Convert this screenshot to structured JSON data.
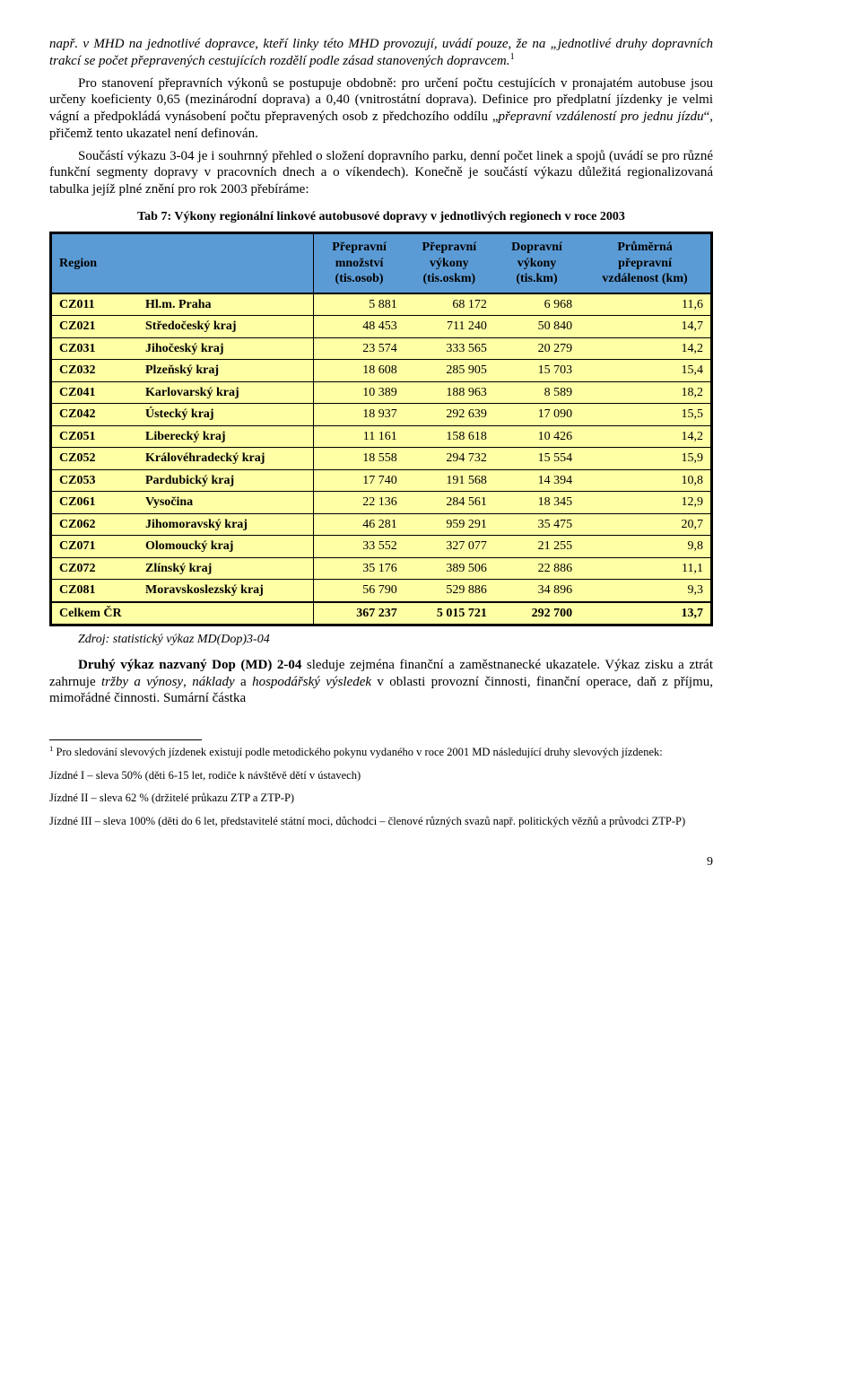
{
  "para1": "např. v MHD na jednotlivé dopravce, kteří linky této MHD provozují, uvádí pouze, že na „jednotlivé druhy dopravních trakcí se počet přepravených cestujících rozdělí podle zásad stanovených dopravcem.",
  "para2a": "Pro stanovení přepravních výkonů se postupuje obdobně: pro určení počtu cestujících v pronajatém autobuse jsou určeny koeficienty 0,65 (mezinárodní doprava) a 0,40 (vnitrostátní doprava). Definice pro předplatní jízdenky je velmi vágní a předpokládá vynásobení počtu přepravených osob z předchozího oddílu „",
  "para2_em": "přepravní vzdáleností pro jednu jízdu",
  "para2b": "“, přičemž tento ukazatel není definován.",
  "para3": "Součástí výkazu 3-04 je i souhrnný přehled o složení dopravního parku, denní počet linek a spojů (uvádí se pro různé funkční segmenty dopravy v pracovních dnech a o víkendech). Konečně je součástí výkazu důležitá regionalizovaná tabulka jejíž plné znění pro rok 2003 přebíráme:",
  "caption": "Tab 7: Výkony regionální linkové autobusové dopravy v jednotlivých regionech v roce 2003",
  "table": {
    "headers": {
      "region": "Region",
      "c1a": "Přepravní",
      "c1b": "množství",
      "c1c": "(tis.osob)",
      "c2a": "Přepravní",
      "c2b": "výkony",
      "c2c": "(tis.oskm)",
      "c3a": "Dopravní",
      "c3b": "výkony",
      "c3c": "(tis.km)",
      "c4a": "Průměrná",
      "c4b": "přepravní",
      "c4c": "vzdálenost (km)"
    },
    "header_bg": "#5b9bd5",
    "body_bg": "#ffffa6",
    "rows": [
      {
        "code": "CZ011",
        "name": "Hl.m. Praha",
        "v": [
          "5 881",
          "68 172",
          "6 968",
          "11,6"
        ]
      },
      {
        "code": "CZ021",
        "name": "Středočeský kraj",
        "v": [
          "48 453",
          "711 240",
          "50 840",
          "14,7"
        ]
      },
      {
        "code": "CZ031",
        "name": "Jihočeský kraj",
        "v": [
          "23 574",
          "333 565",
          "20 279",
          "14,2"
        ]
      },
      {
        "code": "CZ032",
        "name": "Plzeňský kraj",
        "v": [
          "18 608",
          "285 905",
          "15 703",
          "15,4"
        ]
      },
      {
        "code": "CZ041",
        "name": "Karlovarský kraj",
        "v": [
          "10 389",
          "188 963",
          "8 589",
          "18,2"
        ]
      },
      {
        "code": "CZ042",
        "name": "Ústecký kraj",
        "v": [
          "18 937",
          "292 639",
          "17 090",
          "15,5"
        ]
      },
      {
        "code": "CZ051",
        "name": "Liberecký kraj",
        "v": [
          "11 161",
          "158 618",
          "10 426",
          "14,2"
        ]
      },
      {
        "code": "CZ052",
        "name": "Královéhradecký kraj",
        "v": [
          "18 558",
          "294 732",
          "15 554",
          "15,9"
        ]
      },
      {
        "code": "CZ053",
        "name": "Pardubický kraj",
        "v": [
          "17 740",
          "191 568",
          "14 394",
          "10,8"
        ]
      },
      {
        "code": "CZ061",
        "name": "Vysočina",
        "v": [
          "22 136",
          "284 561",
          "18 345",
          "12,9"
        ]
      },
      {
        "code": "CZ062",
        "name": "Jihomoravský kraj",
        "v": [
          "46 281",
          "959 291",
          "35 475",
          "20,7"
        ]
      },
      {
        "code": "CZ071",
        "name": "Olomoucký kraj",
        "v": [
          "33 552",
          "327 077",
          "21 255",
          "9,8"
        ]
      },
      {
        "code": "CZ072",
        "name": "Zlínský kraj",
        "v": [
          "35 176",
          "389 506",
          "22 886",
          "11,1"
        ]
      },
      {
        "code": "CZ081",
        "name": "Moravskoslezský kraj",
        "v": [
          "56 790",
          "529 886",
          "34 896",
          "9,3"
        ]
      }
    ],
    "footer": {
      "name": "Celkem ČR",
      "v": [
        "367 237",
        "5 015 721",
        "292 700",
        "13,7"
      ]
    }
  },
  "source": "Zdroj: statistický výkaz MD(Dop)3-04",
  "para4a": "Druhý výkaz nazvaný Dop (MD) 2-04",
  "para4b": " sleduje zejména finanční a zaměstnanecké ukazatele. Výkaz zisku a ztrát zahrnuje ",
  "para4c": "tržby a výnosy",
  "para4d": ", ",
  "para4e": "náklady",
  "para4f": " a ",
  "para4g": "hospodářský výsledek",
  "para4h": " v oblasti provozní činnosti, finanční operace, daň z příjmu, mimořádné činnosti. Sumární částka",
  "fn_lead": " Pro sledování slevových jízdenek existují podle metodického pokynu vydaného v roce 2001 MD následující druhy slevových jízdenek:",
  "fn1": "Jízdné I – sleva 50% (děti 6-15 let, rodiče k návštěvě dětí v ústavech)",
  "fn2": "Jízdné II – sleva 62 % (držitelé průkazu ZTP a ZTP-P)",
  "fn3": "Jízdné III – sleva 100% (děti do 6 let, představitelé státní moci, důchodci – členové různých svazů např. politických vězňů a průvodci ZTP-P)",
  "pagenum": "9"
}
